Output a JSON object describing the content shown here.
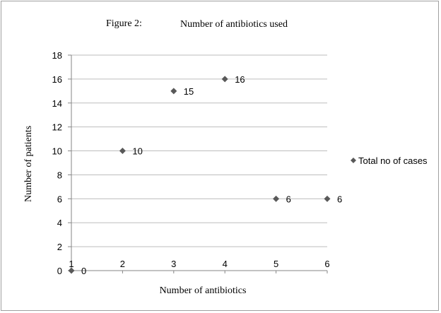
{
  "figure_label": "Figure 2:",
  "chart_data": {
    "type": "scatter",
    "title": "Number of antibiotics used",
    "xlabel": "Number of antibiotics",
    "ylabel": "Number of patients",
    "x_ticks": [
      "1",
      "2",
      "3",
      "4",
      "5",
      "6"
    ],
    "y_ticks": [
      "0",
      "2",
      "4",
      "6",
      "8",
      "10",
      "12",
      "14",
      "16",
      "18"
    ],
    "xlim": [
      1,
      6
    ],
    "ylim": [
      0,
      18
    ],
    "grid": "horizontal",
    "legend_position": "right",
    "series": [
      {
        "name": "Total no of cases",
        "color": "#595959",
        "marker": "diamond",
        "x": [
          1,
          2,
          3,
          4,
          5,
          6
        ],
        "y": [
          0,
          10,
          15,
          16,
          6,
          6
        ],
        "labels": [
          "0",
          "10",
          "15",
          "16",
          "6",
          "6"
        ]
      }
    ]
  }
}
